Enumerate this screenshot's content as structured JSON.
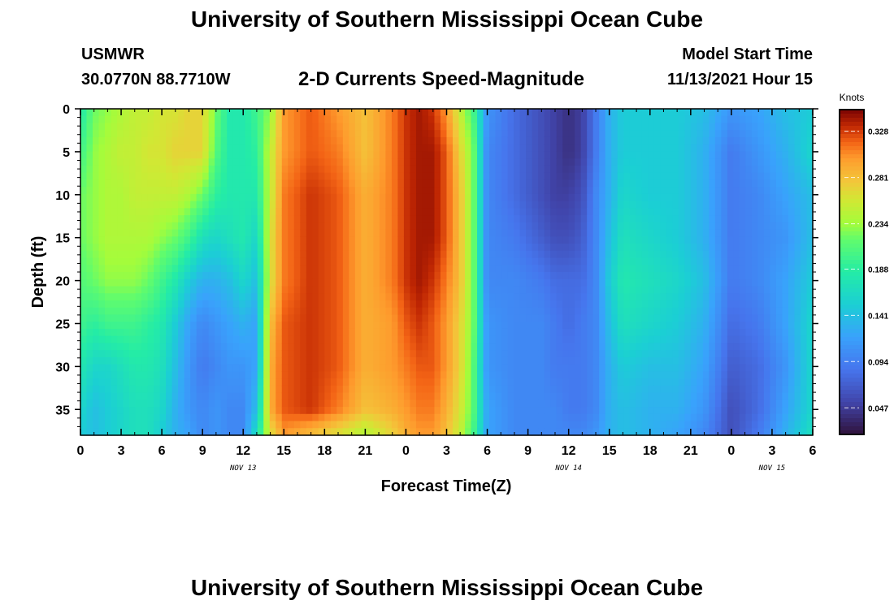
{
  "header": {
    "title": "University of Southern Mississippi Ocean Cube",
    "station": "USMWR",
    "coordinates": "30.0770N  88.7710W",
    "subtitle": "2-D Currents Speed-Magnitude",
    "model_start_label": "Model Start Time",
    "model_start_value": "11/13/2021 Hour 15",
    "repeated_title": "University of Southern Mississippi Ocean Cube"
  },
  "chart_data": {
    "type": "heatmap",
    "title": "2-D Currents Speed-Magnitude",
    "xlabel": "Forecast Time(Z)",
    "ylabel": "Depth (ft)",
    "x_unit": "hours from 11/13/2021 00Z",
    "xlim": [
      0,
      54
    ],
    "ylim": [
      0,
      38
    ],
    "y_inverted": true,
    "x_ticks": [
      0,
      3,
      6,
      9,
      12,
      15,
      18,
      21,
      24,
      27,
      30,
      33,
      36,
      39,
      42,
      45,
      48,
      51,
      54
    ],
    "x_tick_labels": [
      "0",
      "3",
      "6",
      "9",
      "12",
      "15",
      "18",
      "21",
      "0",
      "3",
      "6",
      "9",
      "12",
      "15",
      "18",
      "21",
      "0",
      "3",
      "6"
    ],
    "y_ticks": [
      0,
      5,
      10,
      15,
      20,
      25,
      30,
      35
    ],
    "y_tick_labels": [
      "0",
      "5",
      "10",
      "15",
      "20",
      "25",
      "30",
      "35"
    ],
    "date_labels": [
      {
        "x": 12,
        "text": "NOV 13"
      },
      {
        "x": 36,
        "text": "NOV 14"
      },
      {
        "x": 51,
        "text": "NOV 15"
      }
    ],
    "colorbar": {
      "title": "Knots",
      "ticks": [
        0.047,
        0.094,
        0.141,
        0.188,
        0.234,
        0.281,
        0.328
      ],
      "tick_labels": [
        "0.047",
        "0.094",
        "0.141",
        "0.188",
        "0.234",
        "0.281",
        "0.328"
      ],
      "range": [
        0.02,
        0.35
      ],
      "colormap": "turbo"
    },
    "grid": false,
    "z_description": "current speed magnitude (knots) vs forecast time and depth",
    "depths": [
      0,
      5,
      10,
      15,
      20,
      25,
      30,
      35,
      38
    ],
    "times": [
      0,
      1,
      2,
      3,
      4,
      5,
      6,
      7,
      8,
      9,
      10,
      11,
      12,
      13,
      14,
      15,
      17,
      19,
      21,
      23,
      24,
      25,
      26,
      27,
      28,
      29,
      30,
      32,
      34,
      35,
      36,
      37,
      38,
      39,
      40,
      42,
      44,
      46,
      48,
      50,
      52,
      54
    ],
    "speeds": [
      [
        0.18,
        0.2,
        0.22,
        0.22,
        0.21,
        0.2,
        0.18,
        0.16,
        0.15
      ],
      [
        0.22,
        0.23,
        0.23,
        0.23,
        0.22,
        0.19,
        0.16,
        0.14,
        0.14
      ],
      [
        0.23,
        0.24,
        0.24,
        0.24,
        0.23,
        0.2,
        0.16,
        0.15,
        0.15
      ],
      [
        0.24,
        0.25,
        0.24,
        0.24,
        0.23,
        0.2,
        0.17,
        0.16,
        0.16
      ],
      [
        0.25,
        0.25,
        0.25,
        0.24,
        0.23,
        0.2,
        0.18,
        0.17,
        0.17
      ],
      [
        0.25,
        0.26,
        0.25,
        0.24,
        0.22,
        0.19,
        0.18,
        0.17,
        0.17
      ],
      [
        0.26,
        0.26,
        0.25,
        0.23,
        0.2,
        0.18,
        0.17,
        0.16,
        0.15
      ],
      [
        0.26,
        0.27,
        0.25,
        0.22,
        0.18,
        0.15,
        0.14,
        0.13,
        0.13
      ],
      [
        0.27,
        0.27,
        0.24,
        0.2,
        0.15,
        0.12,
        0.11,
        0.11,
        0.12
      ],
      [
        0.27,
        0.27,
        0.22,
        0.17,
        0.13,
        0.1,
        0.09,
        0.1,
        0.1
      ],
      [
        0.22,
        0.21,
        0.19,
        0.16,
        0.13,
        0.11,
        0.1,
        0.11,
        0.11
      ],
      [
        0.18,
        0.18,
        0.18,
        0.17,
        0.14,
        0.12,
        0.11,
        0.1,
        0.1
      ],
      [
        0.18,
        0.18,
        0.18,
        0.18,
        0.16,
        0.13,
        0.11,
        0.1,
        0.1
      ],
      [
        0.2,
        0.19,
        0.18,
        0.16,
        0.14,
        0.12,
        0.12,
        0.14,
        0.17
      ],
      [
        0.23,
        0.25,
        0.25,
        0.26,
        0.26,
        0.28,
        0.29,
        0.29,
        0.26
      ],
      [
        0.3,
        0.3,
        0.31,
        0.31,
        0.31,
        0.32,
        0.32,
        0.32,
        0.3
      ],
      [
        0.32,
        0.32,
        0.33,
        0.33,
        0.33,
        0.33,
        0.33,
        0.33,
        0.28
      ],
      [
        0.3,
        0.31,
        0.32,
        0.32,
        0.32,
        0.32,
        0.32,
        0.31,
        0.26
      ],
      [
        0.28,
        0.28,
        0.29,
        0.29,
        0.29,
        0.29,
        0.29,
        0.28,
        0.24
      ],
      [
        0.31,
        0.31,
        0.31,
        0.31,
        0.31,
        0.3,
        0.3,
        0.29,
        0.27
      ],
      [
        0.33,
        0.33,
        0.33,
        0.33,
        0.33,
        0.32,
        0.31,
        0.3,
        0.29
      ],
      [
        0.34,
        0.34,
        0.34,
        0.34,
        0.34,
        0.33,
        0.32,
        0.31,
        0.3
      ],
      [
        0.33,
        0.34,
        0.34,
        0.34,
        0.33,
        0.32,
        0.32,
        0.31,
        0.3
      ],
      [
        0.3,
        0.32,
        0.32,
        0.32,
        0.31,
        0.3,
        0.3,
        0.29,
        0.28
      ],
      [
        0.25,
        0.27,
        0.28,
        0.28,
        0.28,
        0.27,
        0.27,
        0.26,
        0.25
      ],
      [
        0.2,
        0.22,
        0.22,
        0.22,
        0.22,
        0.22,
        0.21,
        0.21,
        0.2
      ],
      [
        0.11,
        0.1,
        0.1,
        0.1,
        0.1,
        0.11,
        0.11,
        0.12,
        0.12
      ],
      [
        0.08,
        0.08,
        0.08,
        0.09,
        0.1,
        0.1,
        0.1,
        0.1,
        0.1
      ],
      [
        0.06,
        0.06,
        0.06,
        0.07,
        0.09,
        0.1,
        0.1,
        0.1,
        0.1
      ],
      [
        0.05,
        0.05,
        0.05,
        0.06,
        0.08,
        0.09,
        0.09,
        0.1,
        0.1
      ],
      [
        0.04,
        0.04,
        0.05,
        0.06,
        0.08,
        0.08,
        0.09,
        0.09,
        0.1
      ],
      [
        0.05,
        0.05,
        0.06,
        0.07,
        0.08,
        0.09,
        0.09,
        0.09,
        0.1
      ],
      [
        0.09,
        0.09,
        0.1,
        0.1,
        0.1,
        0.1,
        0.1,
        0.1,
        0.11
      ],
      [
        0.13,
        0.13,
        0.13,
        0.14,
        0.15,
        0.14,
        0.13,
        0.13,
        0.13
      ],
      [
        0.15,
        0.15,
        0.16,
        0.17,
        0.18,
        0.17,
        0.15,
        0.14,
        0.14
      ],
      [
        0.15,
        0.15,
        0.15,
        0.16,
        0.17,
        0.16,
        0.14,
        0.13,
        0.13
      ],
      [
        0.15,
        0.15,
        0.15,
        0.15,
        0.16,
        0.15,
        0.14,
        0.13,
        0.12
      ],
      [
        0.14,
        0.13,
        0.13,
        0.13,
        0.14,
        0.13,
        0.12,
        0.11,
        0.1
      ],
      [
        0.11,
        0.09,
        0.09,
        0.09,
        0.09,
        0.08,
        0.07,
        0.06,
        0.06
      ],
      [
        0.12,
        0.11,
        0.1,
        0.1,
        0.1,
        0.09,
        0.08,
        0.08,
        0.09
      ],
      [
        0.14,
        0.13,
        0.12,
        0.11,
        0.12,
        0.12,
        0.11,
        0.12,
        0.13
      ],
      [
        0.15,
        0.16,
        0.14,
        0.14,
        0.15,
        0.16,
        0.16,
        0.16,
        0.17
      ]
    ]
  }
}
